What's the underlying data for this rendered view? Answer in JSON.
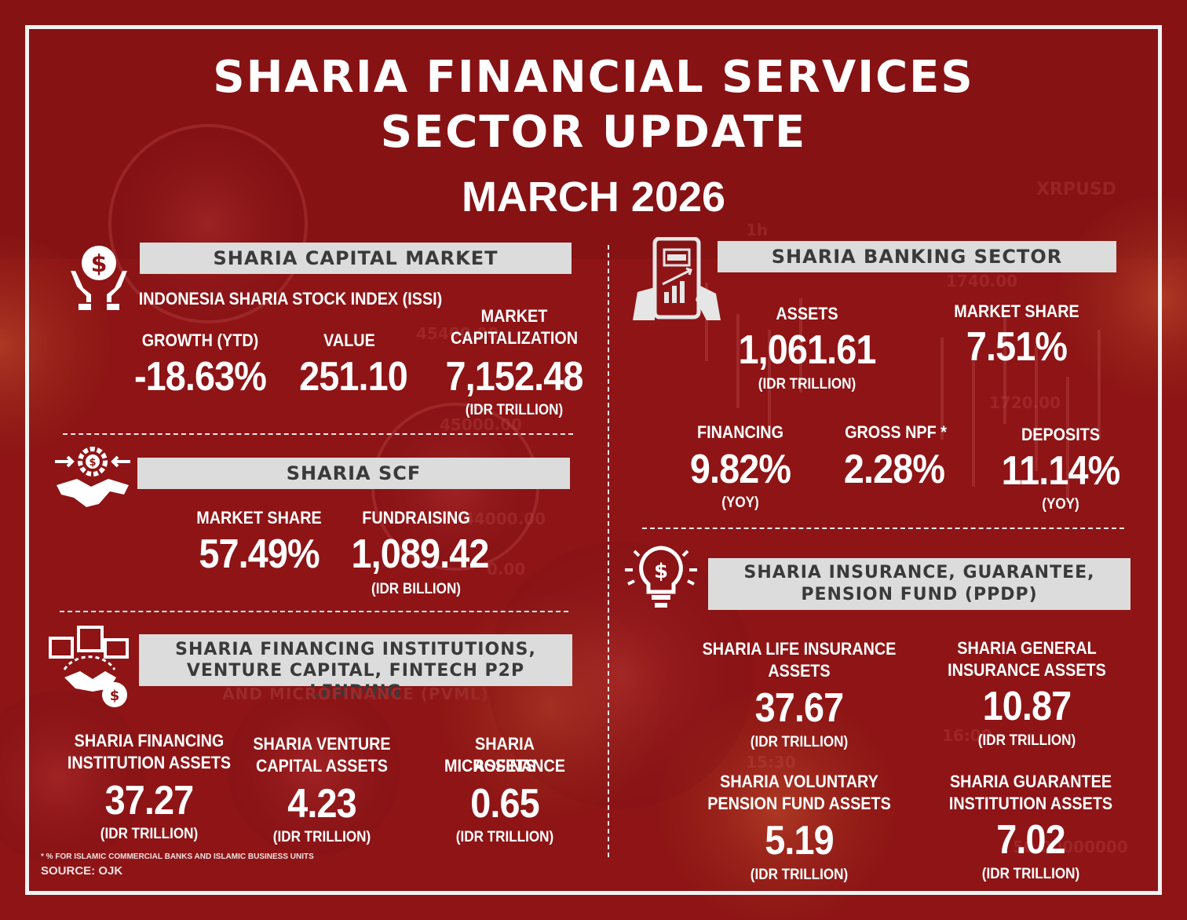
{
  "header": {
    "title_line1": "SHARIA FINANCIAL SERVICES",
    "title_line2": "SECTOR UPDATE",
    "period": "MARCH 2026"
  },
  "capital_market": {
    "heading": "SHARIA CAPITAL MARKET",
    "subtitle": "INDONESIA SHARIA STOCK INDEX (ISSI)",
    "growth_label": "GROWTH  (YTD)",
    "growth_value": "-18.63%",
    "value_label": "VALUE",
    "value_value": "251.10",
    "cap_label_line1": "MARKET",
    "cap_label_line2": "CAPITALIZATION",
    "cap_value": "7,152.48",
    "cap_unit": "(IDR TRILLION)"
  },
  "scf": {
    "heading": "SHARIA SCF",
    "share_label": "MARKET SHARE",
    "share_value": "57.49%",
    "fund_label": "FUNDRAISING",
    "fund_value": "1,089.42",
    "fund_unit": "(IDR BILLION)"
  },
  "pvml": {
    "heading_line1": "SHARIA FINANCING INSTITUTIONS,",
    "heading_line2": "VENTURE CAPITAL, FINTECH P2P LENDING",
    "heading_line3": "AND MICROFINANCE (PVML)",
    "items": [
      {
        "label_line1": "SHARIA FINANCING",
        "label_line2": "INSTITUTION ASSETS",
        "value": "37.27",
        "unit": "(IDR TRILLION)"
      },
      {
        "label_line1": "SHARIA VENTURE",
        "label_line2": "CAPITAL ASSETS",
        "value": "4.23",
        "unit": "(IDR TRILLION)"
      },
      {
        "label_line1": "SHARIA MICROFINANCE",
        "label_line2": "ASSETS",
        "value": "0.65",
        "unit": "(IDR TRILLION)"
      }
    ]
  },
  "banking": {
    "heading": "SHARIA BANKING SECTOR",
    "assets_label": "ASSETS",
    "assets_value": "1,061.61",
    "assets_unit": "(IDR TRILLION)",
    "share_label": "MARKET SHARE",
    "share_value": "7.51%",
    "financing_label": "FINANCING",
    "financing_value": "9.82%",
    "financing_unit": "(YOY)",
    "npf_label": "GROSS NPF *",
    "npf_value": "2.28%",
    "deposits_label": "DEPOSITS",
    "deposits_value": "11.14%",
    "deposits_unit": "(YOY)"
  },
  "ppdp": {
    "heading_line1": "SHARIA INSURANCE, GUARANTEE,",
    "heading_line2": "PENSION FUND (PPDP)",
    "items": [
      {
        "label_line1": "SHARIA LIFE INSURANCE",
        "label_line2": "ASSETS",
        "value": "37.67",
        "unit": "(IDR TRILLION)"
      },
      {
        "label_line1": "SHARIA GENERAL",
        "label_line2": "INSURANCE ASSETS",
        "value": "10.87",
        "unit": "(IDR TRILLION)"
      },
      {
        "label_line1": "SHARIA VOLUNTARY",
        "label_line2": "PENSION FUND ASSETS",
        "value": "5.19",
        "unit": "(IDR TRILLION)"
      },
      {
        "label_line1": "SHARIA GUARANTEE",
        "label_line2": "INSTITUTION ASSETS",
        "value": "7.02",
        "unit": "(IDR TRILLION)"
      }
    ]
  },
  "footer": {
    "footnote": "* % FOR ISLAMIC COMMERCIAL BANKS AND ISLAMIC BUSINESS UNITS",
    "source": "SOURCE: OJK"
  },
  "background_text": [
    "XRPUSD",
    "1740.00",
    "1720.00",
    "45400.00",
    "45000.00",
    "44000.00",
    "0.00",
    "1h",
    "16:00",
    "15:30",
    "50.00000000"
  ]
}
